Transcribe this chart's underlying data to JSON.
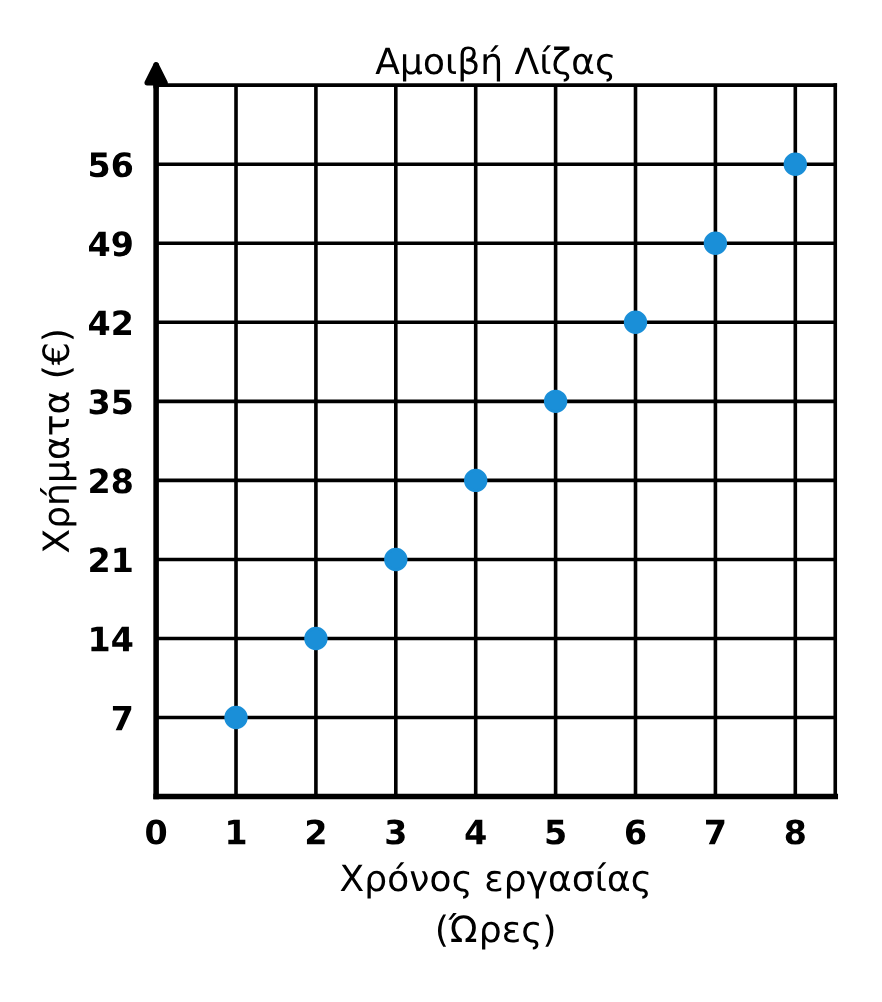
{
  "chart_data": {
    "type": "scatter",
    "title": "Αμοιβή Λίζας",
    "xlabel": "Χρόνος εργασίας\n(Ώρες)",
    "ylabel": "Χρήματα (€)",
    "x": [
      1,
      2,
      3,
      4,
      5,
      6,
      7,
      8
    ],
    "series": [
      {
        "color": "#1a8fd8",
        "values": [
          7,
          14,
          21,
          28,
          35,
          42,
          49,
          56
        ]
      }
    ],
    "xlim": [
      0,
      8.5
    ],
    "ylim": [
      0,
      63
    ],
    "xticks": [
      0,
      1,
      2,
      3,
      4,
      5,
      6,
      7,
      8
    ],
    "yticks": [
      7,
      14,
      21,
      28,
      35,
      42,
      49,
      56,
      {
        "value": 63,
        "label": null
      }
    ],
    "grid": true,
    "marker": "circle",
    "legend": false
  }
}
